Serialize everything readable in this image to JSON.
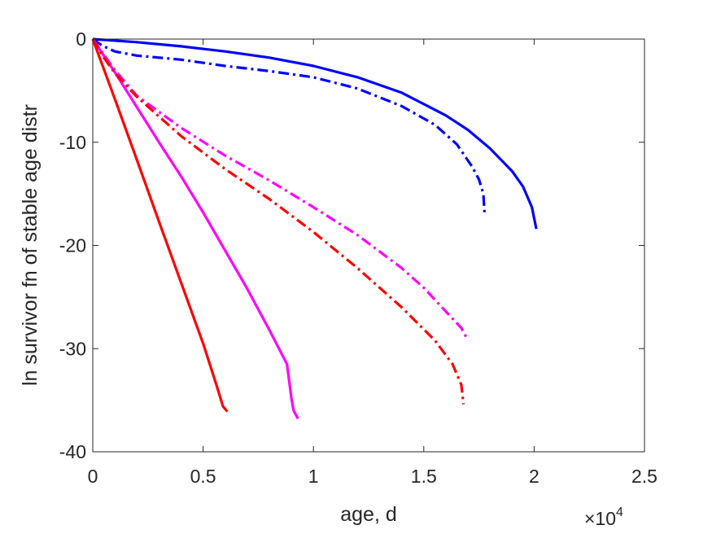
{
  "chart_data": {
    "type": "line",
    "title": "",
    "xlabel": "age, d",
    "ylabel": "ln survivor fn of stable age distr",
    "x_exponent_label": {
      "base": "×10",
      "exp": "4"
    },
    "xlim": [
      0,
      25000
    ],
    "ylim": [
      -40,
      0
    ],
    "xticks": [
      0,
      5000,
      10000,
      15000,
      20000,
      25000
    ],
    "xtick_labels": [
      "0",
      "0.5",
      "1",
      "1.5",
      "2",
      "2.5"
    ],
    "yticks": [
      0,
      -10,
      -20,
      -30,
      -40
    ],
    "ytick_labels": [
      "0",
      "-10",
      "-20",
      "-30",
      "-40"
    ],
    "grid": false,
    "legend": "none",
    "series": [
      {
        "color": "#0000ff",
        "style": "solid",
        "points": [
          [
            0,
            0
          ],
          [
            2000,
            -0.3
          ],
          [
            4000,
            -0.7
          ],
          [
            6000,
            -1.2
          ],
          [
            8000,
            -1.8
          ],
          [
            10000,
            -2.6
          ],
          [
            12000,
            -3.7
          ],
          [
            14000,
            -5.2
          ],
          [
            16000,
            -7.4
          ],
          [
            17000,
            -8.8
          ],
          [
            18000,
            -10.6
          ],
          [
            19000,
            -12.8
          ],
          [
            19500,
            -14.3
          ],
          [
            19900,
            -16.3
          ],
          [
            20100,
            -18.4
          ]
        ]
      },
      {
        "color": "#0000ff",
        "style": "dashdot",
        "points": [
          [
            0,
            0
          ],
          [
            400,
            -0.6
          ],
          [
            1000,
            -1.2
          ],
          [
            2000,
            -1.6
          ],
          [
            4000,
            -2.0
          ],
          [
            6000,
            -2.6
          ],
          [
            8000,
            -3.1
          ],
          [
            10000,
            -3.7
          ],
          [
            12000,
            -4.8
          ],
          [
            14000,
            -6.5
          ],
          [
            15500,
            -8.3
          ],
          [
            16500,
            -10.2
          ],
          [
            17200,
            -12.4
          ],
          [
            17500,
            -13.6
          ],
          [
            17700,
            -15.0
          ],
          [
            17750,
            -16.8
          ]
        ]
      },
      {
        "color": "#ff00ff",
        "style": "solid",
        "points": [
          [
            0,
            0
          ],
          [
            1000,
            -3.2
          ],
          [
            2000,
            -6.6
          ],
          [
            3000,
            -10.0
          ],
          [
            4000,
            -13.3
          ],
          [
            5000,
            -16.8
          ],
          [
            6000,
            -20.5
          ],
          [
            7000,
            -24.2
          ],
          [
            8000,
            -28.2
          ],
          [
            8800,
            -31.5
          ],
          [
            9000,
            -34.8
          ],
          [
            9100,
            -36.0
          ],
          [
            9300,
            -36.8
          ]
        ]
      },
      {
        "color": "#ff00ff",
        "style": "dashdot",
        "points": [
          [
            0,
            0
          ],
          [
            500,
            -1.5
          ],
          [
            1000,
            -3.0
          ],
          [
            2000,
            -5.5
          ],
          [
            4000,
            -8.6
          ],
          [
            6000,
            -11.3
          ],
          [
            8000,
            -13.7
          ],
          [
            10000,
            -16.3
          ],
          [
            12000,
            -19.0
          ],
          [
            14000,
            -22.2
          ],
          [
            15000,
            -24.1
          ],
          [
            16000,
            -26.4
          ],
          [
            16700,
            -28.0
          ],
          [
            17000,
            -29.2
          ]
        ]
      },
      {
        "color": "#ff0000",
        "style": "solid",
        "points": [
          [
            0,
            0
          ],
          [
            1000,
            -5.8
          ],
          [
            2000,
            -11.7
          ],
          [
            3000,
            -17.7
          ],
          [
            4000,
            -23.6
          ],
          [
            5000,
            -29.5
          ],
          [
            5600,
            -33.5
          ],
          [
            5900,
            -35.6
          ],
          [
            6100,
            -36.1
          ]
        ]
      },
      {
        "color": "#ff0000",
        "style": "dashdot",
        "points": [
          [
            0,
            0
          ],
          [
            500,
            -1.8
          ],
          [
            1000,
            -3.3
          ],
          [
            2000,
            -5.6
          ],
          [
            4000,
            -9.4
          ],
          [
            6000,
            -12.6
          ],
          [
            8000,
            -15.5
          ],
          [
            10000,
            -18.7
          ],
          [
            12000,
            -22.2
          ],
          [
            14000,
            -26.0
          ],
          [
            15500,
            -29.2
          ],
          [
            16300,
            -31.5
          ],
          [
            16700,
            -33.5
          ],
          [
            16800,
            -35.4
          ]
        ]
      }
    ]
  }
}
